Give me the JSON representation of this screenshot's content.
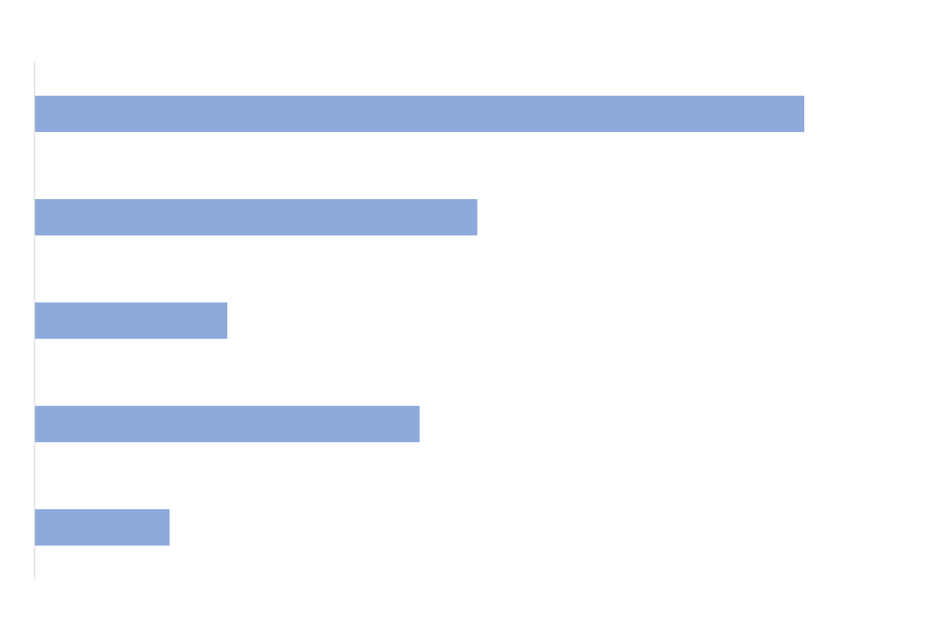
{
  "chart_data": {
    "type": "bar",
    "orientation": "horizontal",
    "categories": [
      "",
      "",
      "",
      "",
      ""
    ],
    "values": [
      100,
      57.5,
      25,
      50,
      17.5
    ],
    "title": "",
    "xlabel": "",
    "ylabel": "",
    "xlim": [
      0,
      120
    ],
    "grid": false,
    "legend": "none",
    "colors": {
      "bar": "#8eaadb",
      "axis": "#d9d9d9",
      "background": "#ffffff"
    }
  }
}
